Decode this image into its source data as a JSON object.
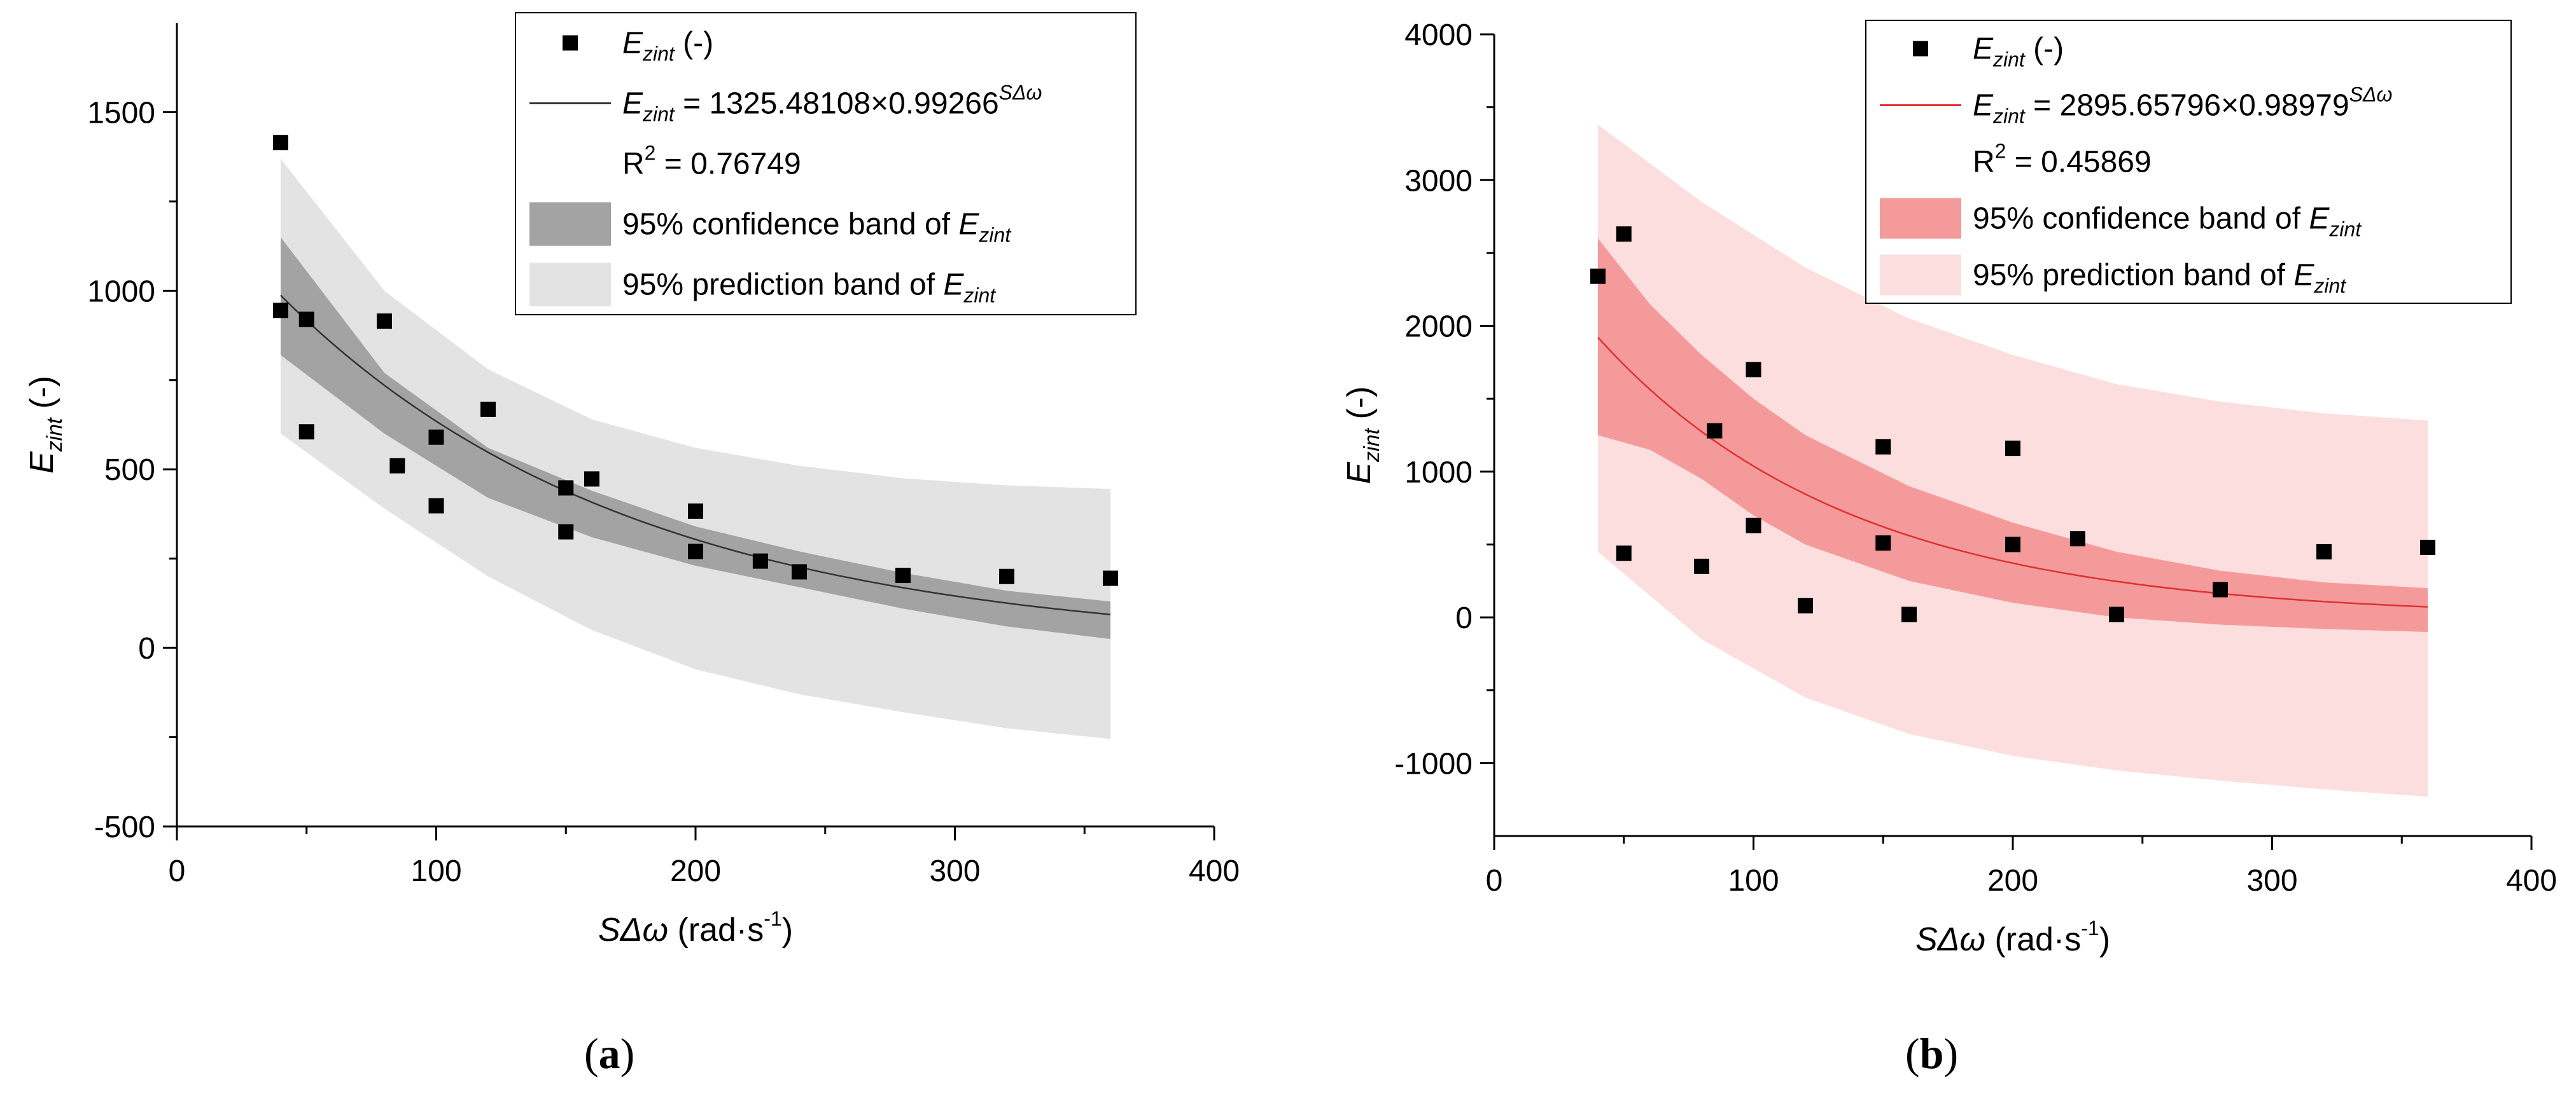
{
  "chart_data": [
    {
      "type": "scatter",
      "panel": "a",
      "caption_open": "(",
      "caption_label": "a",
      "caption_close": ")",
      "xlabel_main": "SΔω",
      "xlabel_unit": " (rad·s",
      "xlabel_exp": "-1",
      "xlabel_close": ")",
      "ylabel_main": "E",
      "ylabel_sub": "zint",
      "ylabel_unit": " (-)",
      "xlim": [
        0,
        400
      ],
      "ylim": [
        -500,
        1750
      ],
      "xticks": [
        0,
        100,
        200,
        300,
        400
      ],
      "yticks": [
        -500,
        0,
        500,
        1000,
        1500
      ],
      "fit": {
        "a": 1325.48108,
        "b": 0.99266,
        "x_min": 40,
        "x_max": 360
      },
      "confidence_band": {
        "x": [
          40,
          80,
          120,
          160,
          200,
          240,
          280,
          320,
          360
        ],
        "lower": [
          820,
          600,
          420,
          310,
          230,
          170,
          110,
          60,
          25
        ],
        "upper": [
          1150,
          770,
          560,
          440,
          340,
          270,
          210,
          160,
          130
        ]
      },
      "prediction_band": {
        "x": [
          40,
          80,
          120,
          160,
          200,
          240,
          280,
          320,
          360
        ],
        "lower": [
          600,
          390,
          200,
          50,
          -60,
          -130,
          -180,
          -225,
          -255
        ],
        "upper": [
          1370,
          1000,
          780,
          640,
          560,
          510,
          475,
          455,
          445
        ]
      },
      "points": {
        "x": [
          40,
          40,
          50,
          50,
          80,
          85,
          100,
          100,
          120,
          150,
          150,
          160,
          200,
          200,
          225,
          240,
          280,
          320,
          360
        ],
        "y": [
          1415,
          945,
          920,
          605,
          915,
          510,
          590,
          398,
          668,
          448,
          325,
          473,
          383,
          270,
          243,
          213,
          203,
          200,
          195
        ]
      },
      "colors": {
        "point": "#000000",
        "fit": "#333333",
        "confidence": "#a3a3a3",
        "prediction": "#e3e3e3"
      },
      "legend": {
        "points_label": "E",
        "points_sub": "zint",
        "points_unit": " (-)",
        "fit_lhs": "E",
        "fit_sub": "zint",
        "fit_rhs": " = 1325.48108×0.99266",
        "fit_exp": "SΔω",
        "r2_lhs": "R",
        "r2_exp": "2",
        "r2_rhs": " = 0.76749",
        "confidence_label": "95% confidence band of ",
        "confidence_var": "E",
        "confidence_sub": "zint",
        "prediction_label": "95% prediction band of ",
        "prediction_var": "E",
        "prediction_sub": "zint"
      }
    },
    {
      "type": "scatter",
      "panel": "b",
      "caption_open": "(",
      "caption_label": "b",
      "caption_close": ")",
      "xlabel_main": "SΔω",
      "xlabel_unit": " (rad·s",
      "xlabel_exp": "-1",
      "xlabel_close": ")",
      "ylabel_main": "E",
      "ylabel_sub": "zint",
      "ylabel_unit": " (-)",
      "xlim": [
        0,
        400
      ],
      "ylim": [
        -1500,
        4000
      ],
      "xticks": [
        0,
        100,
        200,
        300,
        400
      ],
      "yticks": [
        -1000,
        0,
        1000,
        2000,
        3000,
        4000
      ],
      "fit": {
        "a": 2895.65796,
        "b": 0.98979,
        "x_min": 40,
        "x_max": 360
      },
      "confidence_band": {
        "x": [
          40,
          60,
          80,
          100,
          120,
          160,
          200,
          240,
          280,
          320,
          360
        ],
        "lower": [
          1250,
          1150,
          950,
          700,
          500,
          250,
          100,
          0,
          -50,
          -80,
          -100
        ],
        "upper": [
          2600,
          2150,
          1800,
          1500,
          1250,
          900,
          650,
          450,
          320,
          240,
          200
        ]
      },
      "prediction_band": {
        "x": [
          40,
          80,
          120,
          160,
          200,
          240,
          280,
          320,
          360
        ],
        "lower": [
          450,
          -150,
          -550,
          -800,
          -950,
          -1050,
          -1120,
          -1180,
          -1230
        ],
        "upper": [
          3380,
          2850,
          2400,
          2050,
          1800,
          1600,
          1480,
          1400,
          1350
        ]
      },
      "points": {
        "x": [
          40,
          50,
          50,
          80,
          85,
          100,
          100,
          120,
          150,
          150,
          160,
          200,
          200,
          225,
          240,
          280,
          320,
          360
        ],
        "y": [
          2340,
          2630,
          440,
          350,
          1280,
          1700,
          630,
          80,
          1170,
          510,
          20,
          1160,
          500,
          540,
          20,
          190,
          450,
          480
        ]
      },
      "colors": {
        "point": "#000000",
        "fit": "#e03030",
        "confidence": "#f49a9a",
        "prediction": "#fcdede"
      },
      "legend": {
        "points_label": "E",
        "points_sub": "zint",
        "points_unit": " (-)",
        "fit_lhs": "E",
        "fit_sub": "zint",
        "fit_rhs": " = 2895.65796×0.98979",
        "fit_exp": "SΔω",
        "r2_lhs": "R",
        "r2_exp": "2",
        "r2_rhs": " = 0.45869",
        "confidence_label": "95% confidence band of ",
        "confidence_var": "E",
        "confidence_sub": "zint",
        "prediction_label": "95% prediction band of ",
        "prediction_var": "E",
        "prediction_sub": "zint"
      }
    }
  ]
}
